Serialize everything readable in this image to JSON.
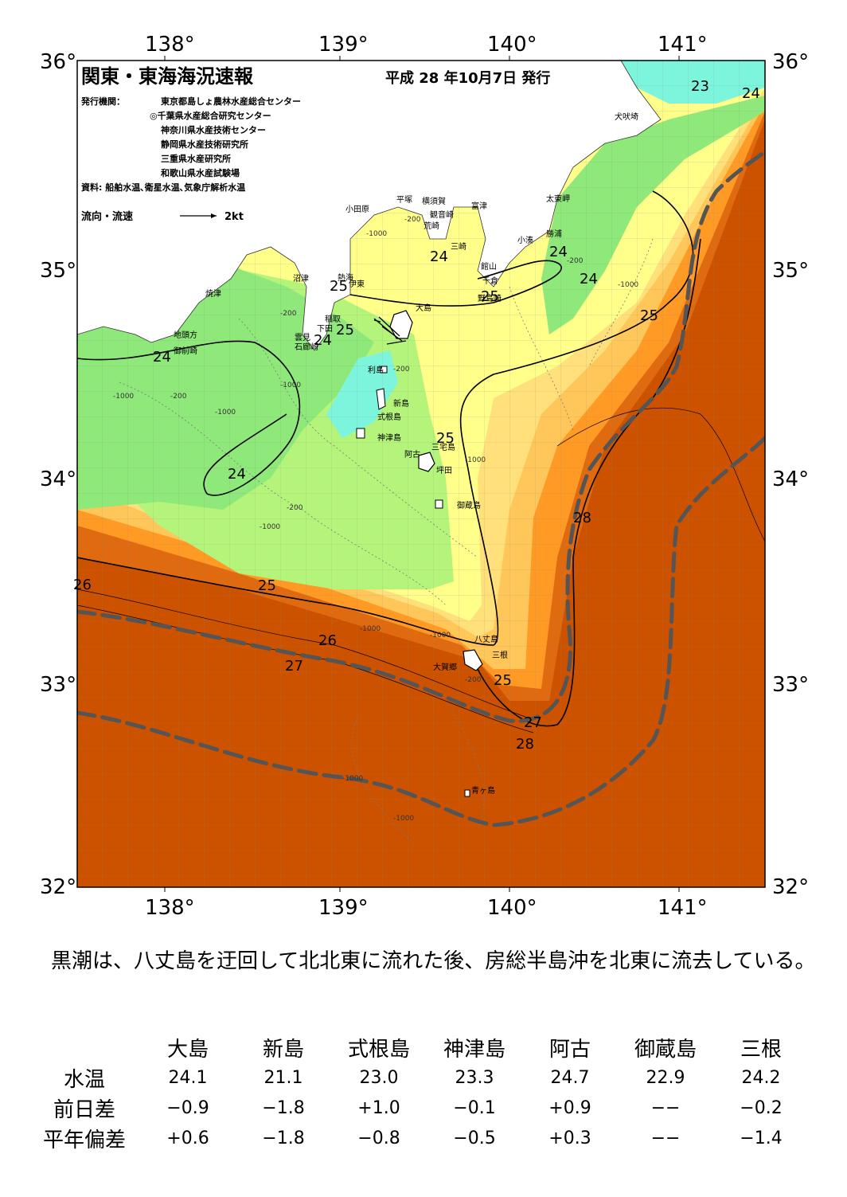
{
  "header": {
    "title": "関東・東海海況速報",
    "issue_date": "平成 28 年10月7日 発行",
    "issuer_label": "発行機関：",
    "issuers": [
      "東京都島しょ農林水産総合センター",
      "◎千葉県水産総合研究センター",
      "神奈川県水産技術センター",
      "静岡県水産技術研究所",
      "三重県水産研究所",
      "和歌山県水産試験場"
    ],
    "source": "資料: 船舶水温､衛星水温､気象庁解析水温",
    "legend_label": "流向・流速",
    "legend_speed": "2kt"
  },
  "axes": {
    "lon_top": [
      "138°",
      "139°",
      "140°",
      "141°"
    ],
    "lon_bottom": [
      "138°",
      "139°",
      "140°",
      "141°"
    ],
    "lat_left": [
      "36°",
      "35°",
      "34°",
      "33°",
      "32°"
    ],
    "lat_right": [
      "36°",
      "35°",
      "34°",
      "33°",
      "32°"
    ]
  },
  "place_names": [
    "犬吠埼",
    "太東岬",
    "勝浦",
    "小湊",
    "平塚",
    "横須賀",
    "観音崎",
    "富津",
    "荒崎",
    "三崎",
    "館山",
    "千倉",
    "野島崎",
    "小田原",
    "沼津",
    "熱海",
    "伊東",
    "焼津",
    "稲取",
    "下田",
    "雲見",
    "石廊崎",
    "地頭方",
    "御前崎",
    "大島",
    "利島",
    "新島",
    "式根島",
    "神津島",
    "三宅島",
    "阿古",
    "坪田",
    "御蔵島",
    "八丈島",
    "三根",
    "大賀郷",
    "青ヶ島"
  ],
  "isotherm_labels": [
    "23",
    "24",
    "24",
    "24",
    "24",
    "24",
    "24",
    "24",
    "25",
    "25",
    "25",
    "25",
    "25",
    "25",
    "26",
    "26",
    "27",
    "27",
    "28",
    "28"
  ],
  "depth_labels": [
    "-200",
    "-1000",
    "-200",
    "-1000",
    "-200",
    "-1000",
    "-200",
    "-1000",
    "-200",
    "-1000",
    "-1000",
    "-200",
    "-1000",
    "-1000",
    "-1000",
    "-1000",
    "-200",
    "-1000"
  ],
  "colors": {
    "t23": "#7df5dc",
    "t24": "#8ee87a",
    "t24b": "#b4f47a",
    "t25": "#ffff8a",
    "t25b": "#ffe07a",
    "t26": "#ffc75a",
    "t27": "#ff9a24",
    "t28": "#e06a10",
    "t29": "#cc5200",
    "land": "#ffffff",
    "kuroshio": "#555555"
  },
  "summary": "黒潮は、八丈島を迂回して北北東に流れた後、房総半島沖を北東に流去している。",
  "table": {
    "columns": [
      "大島",
      "新島",
      "式根島",
      "神津島",
      "阿古",
      "御蔵島",
      "三根"
    ],
    "rows": [
      {
        "label": "水温",
        "values": [
          "24.1",
          "21.1",
          "23.0",
          "23.3",
          "24.7",
          "22.9",
          "24.2"
        ]
      },
      {
        "label": "前日差",
        "values": [
          "−0.9",
          "−1.8",
          "+1.0",
          "−0.1",
          "+0.9",
          "−−",
          "−0.2"
        ]
      },
      {
        "label": "平年偏差",
        "values": [
          "+0.6",
          "−1.8",
          "−0.8",
          "−0.5",
          "+0.3",
          "−−",
          "−1.4"
        ]
      }
    ]
  }
}
